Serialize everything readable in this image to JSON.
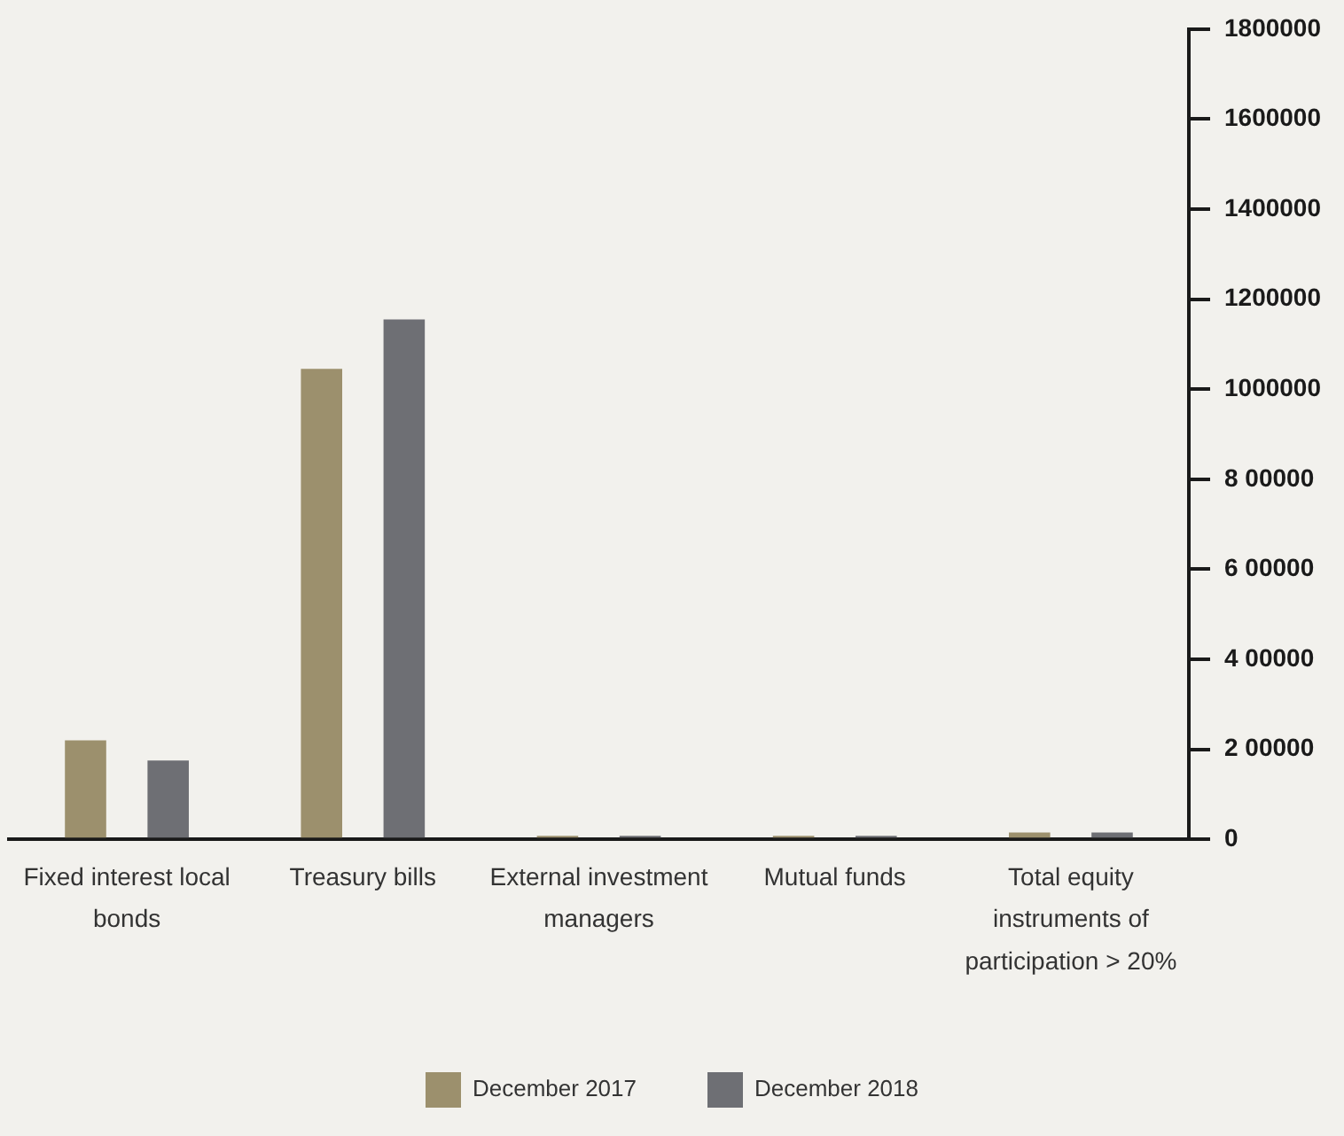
{
  "chart_data": {
    "type": "bar",
    "categories": [
      "Fixed interest local bonds",
      "Treasury bills",
      "External investment managers",
      "Mutual funds",
      "Total equity instruments of participation > 20%"
    ],
    "series": [
      {
        "name": "December 2017",
        "color": "#9c906d",
        "values": [
          220000,
          1045000,
          8000,
          8000,
          15000
        ]
      },
      {
        "name": "December 2018",
        "color": "#6e6f74",
        "values": [
          175000,
          1155000,
          8000,
          8000,
          15000
        ]
      }
    ],
    "ylim": [
      0,
      1800000
    ],
    "yticks": [
      0,
      {
        "value": 200000,
        "label": "2 00000"
      },
      {
        "value": 400000,
        "label": "4 00000"
      },
      {
        "value": 600000,
        "label": "6 00000"
      },
      {
        "value": 800000,
        "label": "8 00000"
      },
      1000000,
      1200000,
      1400000,
      1600000,
      1800000
    ],
    "grid": false,
    "legend": "bottom"
  }
}
